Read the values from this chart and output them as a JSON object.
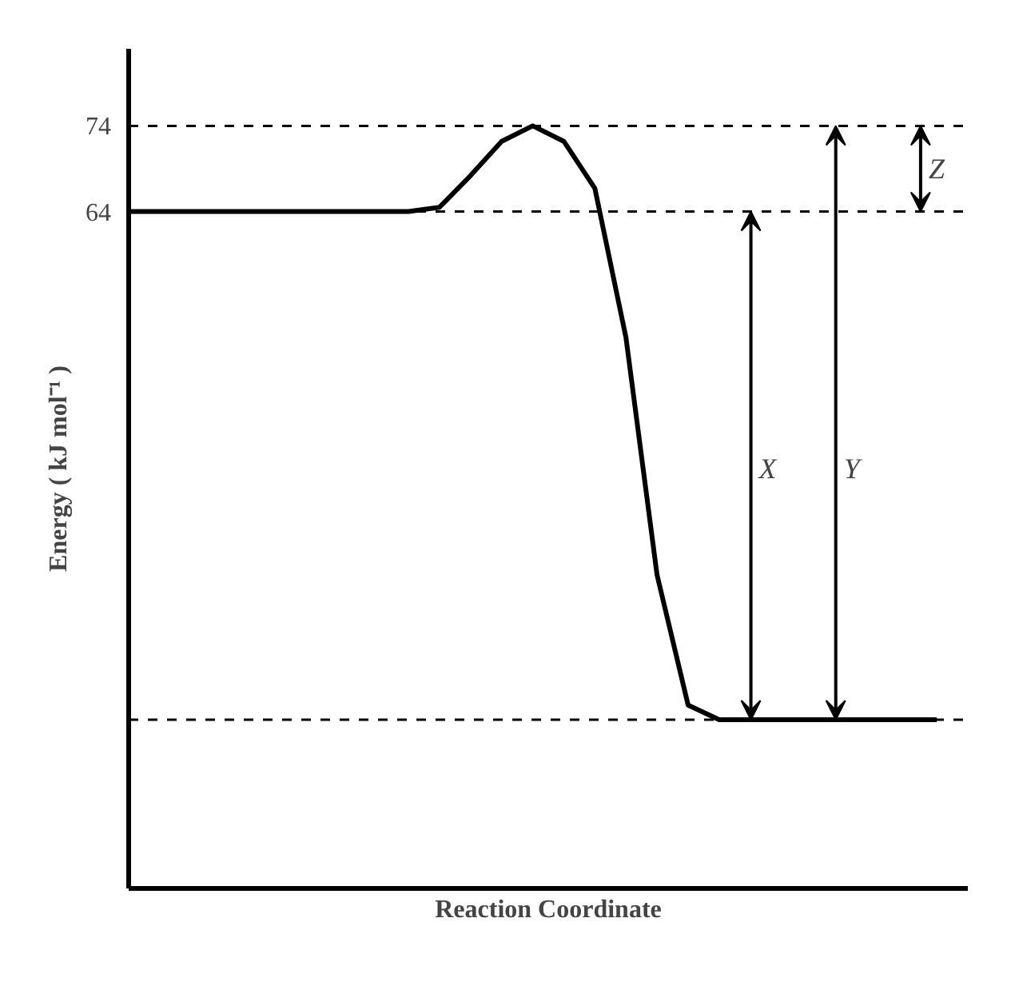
{
  "chart_data": {
    "type": "line",
    "xlabel": "Reaction Coordinate",
    "ylabel": "Energy ( kJ mol⁻¹ )",
    "categories": [
      null,
      null,
      null,
      null,
      null,
      null,
      null,
      null,
      null,
      null,
      null,
      null,
      null,
      null,
      null,
      null,
      null,
      null,
      null,
      null,
      null,
      null,
      null,
      null,
      null,
      null,
      null
    ],
    "values": [
      64,
      64,
      64,
      64,
      64,
      64,
      64,
      64,
      64,
      64,
      64.5,
      68.2,
      72.2,
      74,
      72.2,
      66.7,
      49.3,
      21.6,
      6.4,
      4.7,
      4.7,
      4.7,
      4.7,
      4.7,
      4.7,
      4.7,
      4.7
    ],
    "color": "#000000",
    "ylim": [
      -15,
      83
    ],
    "yticks": [
      64,
      74
    ],
    "grid": false,
    "marker": "none",
    "line_style": "solid",
    "ref_lines": [
      {
        "axis": "y",
        "value": 74,
        "line_style": "dashed"
      },
      {
        "axis": "y",
        "value": 64,
        "line_style": "dashed"
      },
      {
        "axis": "y",
        "value": 4.7,
        "line_style": "dashed"
      }
    ],
    "annotations": [
      {
        "text": "X",
        "y": 34
      },
      {
        "text": "Y",
        "y": 34
      },
      {
        "text": "Z",
        "y": 69
      }
    ]
  }
}
